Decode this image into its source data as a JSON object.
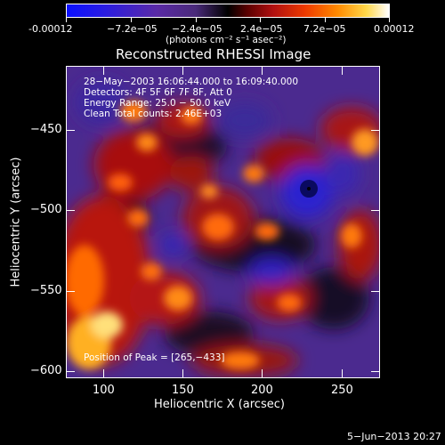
{
  "colorbar": {
    "tick_labels": [
      "-0.00012",
      "−7.2e−05",
      "−2.4e−05",
      "2.4e−05",
      "7.2e−05",
      "0.00012"
    ],
    "units_label": "(photons cm⁻² s⁻¹ asec⁻²)"
  },
  "title": "Reconstructed RHESSI Image",
  "info": {
    "line1": "28−May−2003 16:06:44.000 to 16:09:40.000",
    "line2": "Detectors: 4F 5F 6F 7F 8F, Att 0",
    "line3": "Energy Range: 25.0 − 50.0 keV",
    "line4": "Clean    Total counts: 2.46E+03",
    "peak": "Position of Peak = [265,−433]"
  },
  "axes": {
    "xlabel": "Heliocentric X (arcsec)",
    "ylabel": "Heliocentric Y (arcsec)",
    "x_ticks": [
      "100",
      "150",
      "200",
      "250"
    ],
    "y_ticks": [
      "−450",
      "−500",
      "−550",
      "−600"
    ]
  },
  "footer": {
    "timestamp": "5−Jun−2013 20:27"
  },
  "colors": {
    "background": "#000000",
    "text": "#ffffff"
  }
}
